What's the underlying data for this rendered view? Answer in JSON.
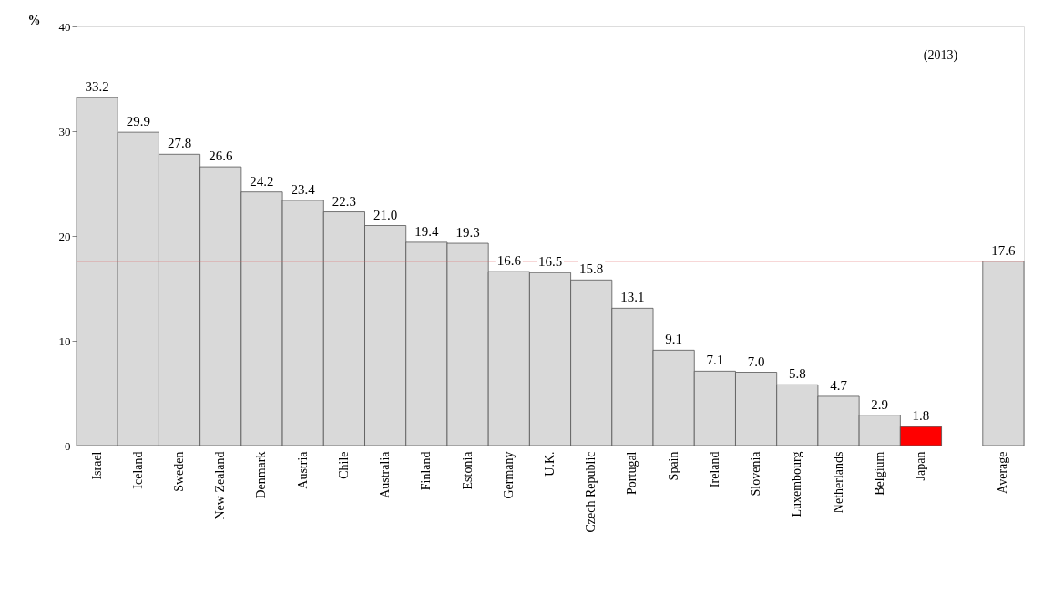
{
  "chart_data": {
    "type": "bar",
    "ylabel": "%",
    "categories": [
      "Israel",
      "Iceland",
      "Sweden",
      "New Zealand",
      "Denmark",
      "Austria",
      "Chile",
      "Australia",
      "Finland",
      "Estonia",
      "Germany",
      "U.K.",
      "Czech Republic",
      "Portugal",
      "Spain",
      "Ireland",
      "Slovenia",
      "Luxembourg",
      "Netherlands",
      "Belgium",
      "Japan",
      null,
      "Average"
    ],
    "values": [
      33.2,
      29.9,
      27.8,
      26.6,
      24.2,
      23.4,
      22.3,
      21.0,
      19.4,
      19.3,
      16.6,
      16.5,
      15.8,
      13.1,
      9.1,
      7.1,
      7.0,
      5.8,
      4.7,
      2.9,
      1.8,
      null,
      17.6
    ],
    "colors": [
      "#d9d9d9",
      "#d9d9d9",
      "#d9d9d9",
      "#d9d9d9",
      "#d9d9d9",
      "#d9d9d9",
      "#d9d9d9",
      "#d9d9d9",
      "#d9d9d9",
      "#d9d9d9",
      "#d9d9d9",
      "#d9d9d9",
      "#d9d9d9",
      "#d9d9d9",
      "#d9d9d9",
      "#d9d9d9",
      "#d9d9d9",
      "#d9d9d9",
      "#d9d9d9",
      "#d9d9d9",
      "#ff0000",
      "#d9d9d9",
      "#d9d9d9"
    ],
    "value_labels": [
      "33.2",
      "29.9",
      "27.8",
      "26.6",
      "24.2",
      "23.4",
      "22.3",
      "21.0",
      "19.4",
      "19.3",
      "16.6",
      "16.5",
      "15.8",
      "13.1",
      "9.1",
      "7.1",
      "7.0",
      "5.8",
      "4.7",
      "2.9",
      "1.8",
      null,
      "17.6"
    ],
    "ylim": [
      0,
      40
    ],
    "yticks": [
      0,
      10,
      20,
      30,
      40
    ],
    "grid": false,
    "ref_lines": [
      {
        "axis": "y",
        "value": 17.6,
        "color": "#e06060"
      }
    ],
    "annotations": [
      "(2013)"
    ]
  }
}
